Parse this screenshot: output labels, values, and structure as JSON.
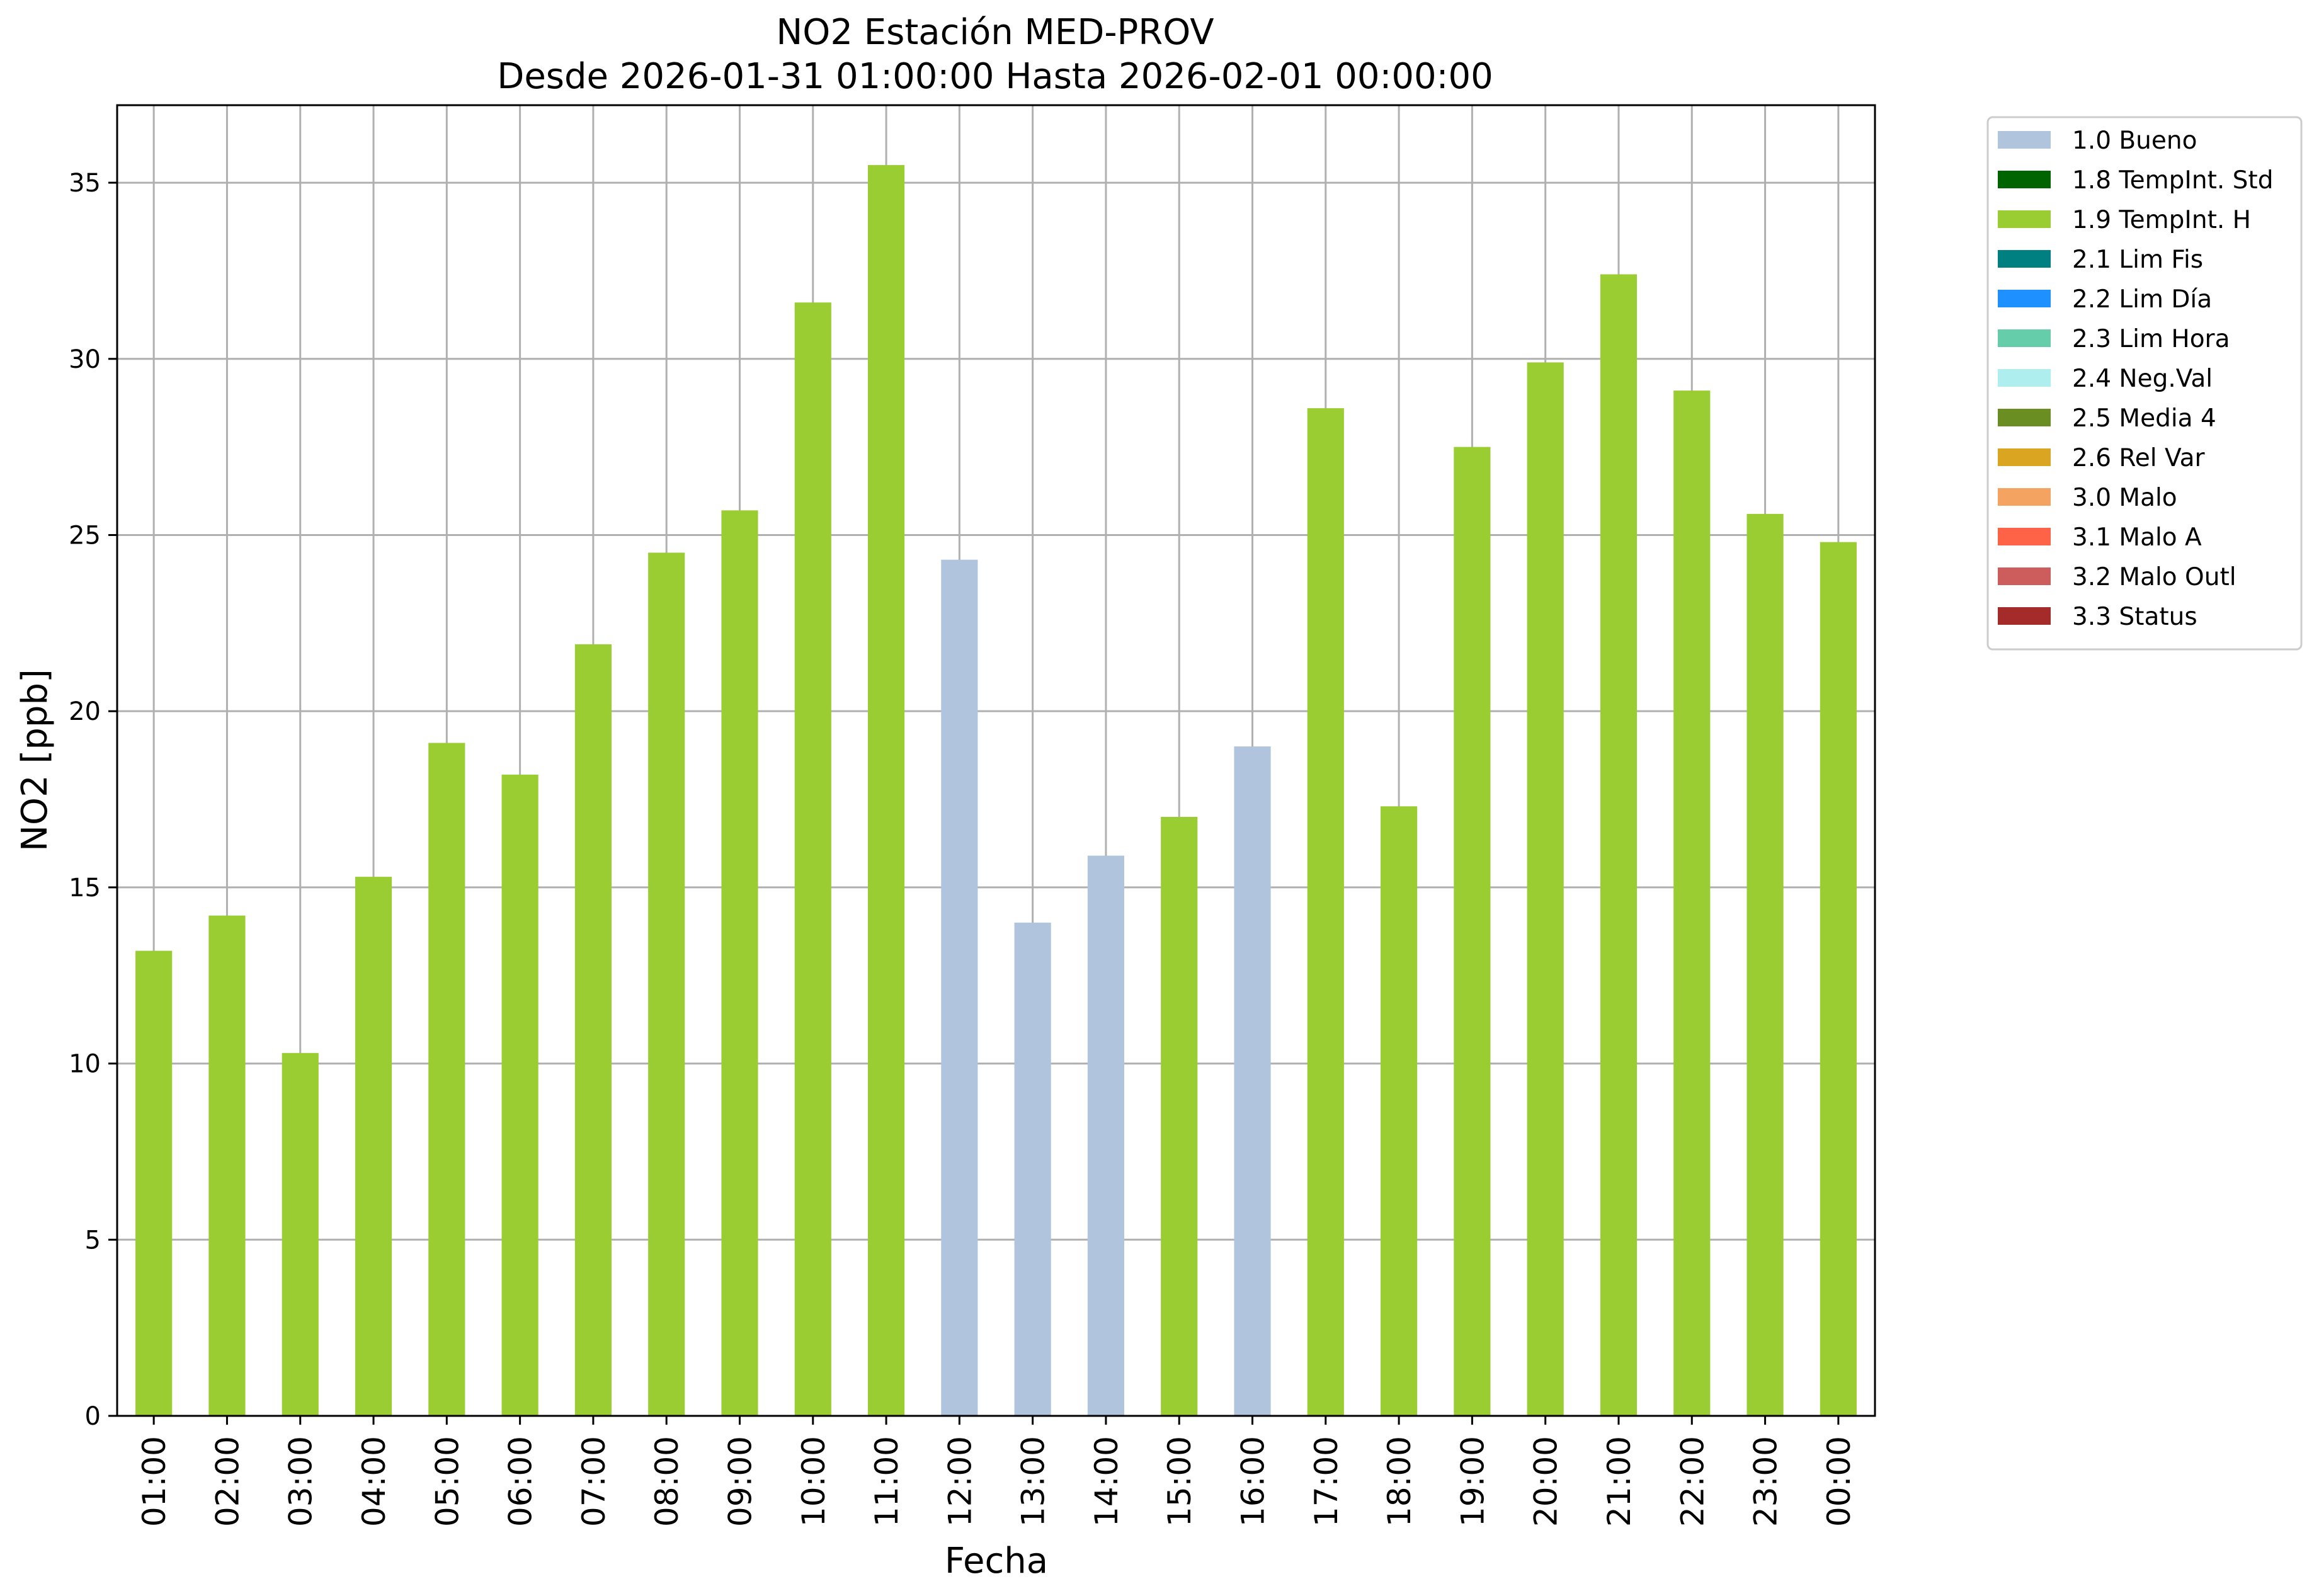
{
  "chart_data": {
    "type": "bar",
    "title": "NO2 Estación MED-PROV",
    "subtitle": "Desde 2026-01-31 01:00:00 Hasta 2026-02-01 00:00:00",
    "xlabel": "Fecha",
    "ylabel": "NO2 [ppb]",
    "ylim": [
      0,
      37.2
    ],
    "yticks": [
      0,
      5,
      10,
      15,
      20,
      25,
      30,
      35
    ],
    "grid": true,
    "legend_position": "outside-top-right",
    "categories": [
      "01:00",
      "02:00",
      "03:00",
      "04:00",
      "05:00",
      "06:00",
      "07:00",
      "08:00",
      "09:00",
      "10:00",
      "11:00",
      "12:00",
      "13:00",
      "14:00",
      "15:00",
      "16:00",
      "17:00",
      "18:00",
      "19:00",
      "20:00",
      "21:00",
      "22:00",
      "23:00",
      "00:00"
    ],
    "values": [
      13.2,
      14.2,
      10.3,
      15.3,
      19.1,
      18.2,
      21.9,
      24.5,
      25.7,
      31.6,
      35.5,
      24.3,
      14.0,
      15.9,
      17.0,
      19.0,
      28.6,
      17.3,
      27.5,
      29.9,
      32.4,
      29.1,
      25.6,
      24.8
    ],
    "flags": [
      "1.9 TempInt. H",
      "1.9 TempInt. H",
      "1.9 TempInt. H",
      "1.9 TempInt. H",
      "1.9 TempInt. H",
      "1.9 TempInt. H",
      "1.9 TempInt. H",
      "1.9 TempInt. H",
      "1.9 TempInt. H",
      "1.9 TempInt. H",
      "1.9 TempInt. H",
      "1.0 Bueno",
      "1.0 Bueno",
      "1.0 Bueno",
      "1.9 TempInt. H",
      "1.0 Bueno",
      "1.9 TempInt. H",
      "1.9 TempInt. H",
      "1.9 TempInt. H",
      "1.9 TempInt. H",
      "1.9 TempInt. H",
      "1.9 TempInt. H",
      "1.9 TempInt. H",
      "1.9 TempInt. H"
    ],
    "legend": [
      {
        "name": "1.0 Bueno",
        "color": "#b0c4de"
      },
      {
        "name": "1.8 TempInt. Std",
        "color": "#006400"
      },
      {
        "name": "1.9 TempInt. H",
        "color": "#9acd32"
      },
      {
        "name": "2.1 Lim Fis",
        "color": "#008080"
      },
      {
        "name": "2.2 Lim Día",
        "color": "#1e90ff"
      },
      {
        "name": "2.3 Lim Hora",
        "color": "#66cdaa"
      },
      {
        "name": "2.4 Neg.Val",
        "color": "#afeeee"
      },
      {
        "name": "2.5 Media 4",
        "color": "#6b8e23"
      },
      {
        "name": "2.6 Rel Var",
        "color": "#daa520"
      },
      {
        "name": "3.0 Malo",
        "color": "#f4a460"
      },
      {
        "name": "3.1 Malo A",
        "color": "#ff6347"
      },
      {
        "name": "3.2 Malo Outl",
        "color": "#cd5c5c"
      },
      {
        "name": "3.3 Status",
        "color": "#a52a2a"
      }
    ]
  }
}
